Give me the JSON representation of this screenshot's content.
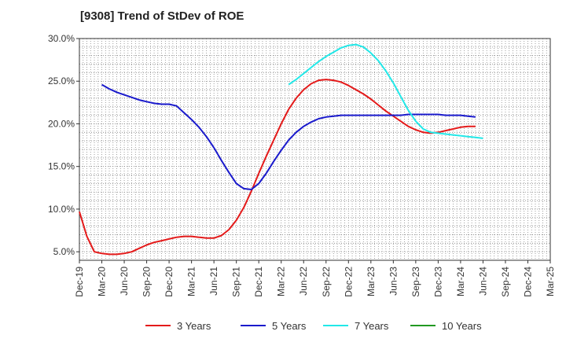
{
  "chart_data": {
    "type": "line",
    "title": "[9308]  Trend of StDev of ROE",
    "xlabel": "",
    "ylabel": "",
    "x_ticks": [
      "Dec-19",
      "Mar-20",
      "Jun-20",
      "Sep-20",
      "Dec-20",
      "Mar-21",
      "Jun-21",
      "Sep-21",
      "Dec-21",
      "Mar-22",
      "Jun-22",
      "Sep-22",
      "Dec-22",
      "Mar-23",
      "Jun-23",
      "Sep-23",
      "Dec-23",
      "Mar-24",
      "Jun-24",
      "Sep-24",
      "Dec-24",
      "Mar-25"
    ],
    "y_ticks": [
      "5.0%",
      "10.0%",
      "15.0%",
      "20.0%",
      "25.0%",
      "30.0%"
    ],
    "y_tick_values": [
      5,
      10,
      15,
      20,
      25,
      30
    ],
    "ylim": [
      4.0,
      30.0
    ],
    "grid": true,
    "legend_position": "bottom",
    "series": [
      {
        "name": "3 Years",
        "color": "#e41a1a",
        "values": [
          9.7,
          6.8,
          5.0,
          4.8,
          4.7,
          4.7,
          4.8,
          5.0,
          5.4,
          5.8,
          6.1,
          6.3,
          6.5,
          6.7,
          6.8,
          6.8,
          6.7,
          6.6,
          6.6,
          6.9,
          7.6,
          8.7,
          10.2,
          12.1,
          14.2,
          16.2,
          18.1,
          20.0,
          21.7,
          23.0,
          24.0,
          24.7,
          25.1,
          25.2,
          25.1,
          24.9,
          24.5,
          24.0,
          23.5,
          22.9,
          22.2,
          21.5,
          20.9,
          20.3,
          19.7,
          19.3,
          19.0,
          18.9,
          19.0,
          19.2,
          19.4,
          19.6,
          19.7,
          19.7,
          null
        ]
      },
      {
        "name": "5 Years",
        "color": "#1a1acc",
        "values": [
          null,
          null,
          null,
          24.6,
          24.1,
          23.7,
          23.4,
          23.1,
          22.8,
          22.6,
          22.4,
          22.3,
          22.3,
          22.1,
          21.3,
          20.5,
          19.6,
          18.5,
          17.2,
          15.7,
          14.3,
          13.0,
          12.4,
          12.3,
          13.0,
          14.2,
          15.6,
          16.9,
          18.1,
          19.0,
          19.7,
          20.2,
          20.6,
          20.8,
          20.9,
          21.0,
          21.0,
          21.0,
          21.0,
          21.0,
          21.0,
          21.0,
          21.0,
          21.0,
          21.1,
          21.1,
          21.1,
          21.1,
          21.1,
          21.0,
          21.0,
          21.0,
          20.9,
          20.8,
          null
        ]
      },
      {
        "name": "7 Years",
        "color": "#22e8e8",
        "values": [
          null,
          null,
          null,
          null,
          null,
          null,
          null,
          null,
          null,
          null,
          null,
          null,
          null,
          null,
          null,
          null,
          null,
          null,
          null,
          null,
          null,
          null,
          null,
          null,
          null,
          null,
          null,
          null,
          null,
          null,
          null,
          null,
          null,
          null,
          null,
          null,
          null,
          null,
          null,
          null,
          null,
          null,
          null,
          null,
          null,
          null,
          null,
          null,
          null,
          null,
          null,
          null,
          null,
          null,
          null
        ],
        "values_note": ""
      },
      {
        "name": "10 Years",
        "color": "#229922",
        "values": []
      }
    ],
    "series7_points": [
      24.6,
      25.2,
      25.9,
      26.6,
      27.3,
      27.9,
      28.4,
      28.9,
      29.2,
      29.3,
      29.0,
      28.3,
      27.4,
      26.2,
      24.8,
      23.2,
      21.6,
      20.3,
      19.4,
      19.0,
      18.9,
      18.8,
      18.7,
      18.6,
      18.5,
      18.4,
      18.3
    ],
    "series7_start_index": 28
  }
}
